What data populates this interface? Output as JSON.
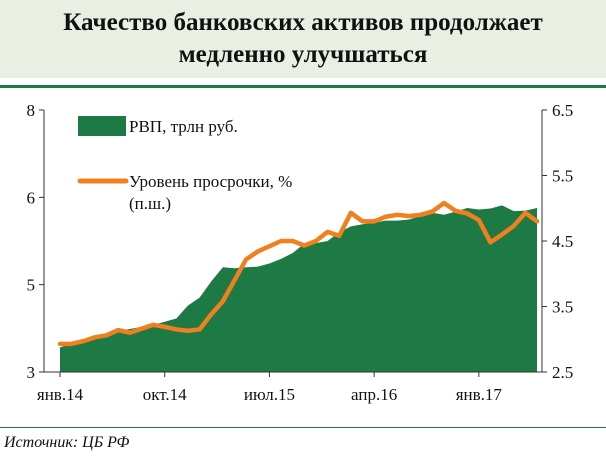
{
  "title": "Качество банковских активов продолжает медленно улучшаться",
  "source": "Источник: ЦБ РФ",
  "colors": {
    "area": "#1e7a44",
    "line": "#f07f1e",
    "header_bg": "#e9f0e3"
  },
  "chart_data": {
    "type": "area",
    "x": [
      "2014-01",
      "2014-02",
      "2014-03",
      "2014-04",
      "2014-05",
      "2014-06",
      "2014-07",
      "2014-08",
      "2014-09",
      "2014-10",
      "2014-11",
      "2014-12",
      "2015-01",
      "2015-02",
      "2015-03",
      "2015-04",
      "2015-05",
      "2015-06",
      "2015-07",
      "2015-08",
      "2015-09",
      "2015-10",
      "2015-11",
      "2015-12",
      "2016-01",
      "2016-02",
      "2016-03",
      "2016-04",
      "2016-05",
      "2016-06",
      "2016-07",
      "2016-08",
      "2016-09",
      "2016-10",
      "2016-11",
      "2016-12",
      "2017-01",
      "2017-02",
      "2017-03",
      "2017-04",
      "2017-05",
      "2017-06"
    ],
    "x_tick_labels": [
      "янв.14",
      "окт.14",
      "июл.15",
      "апр.16",
      "янв.17"
    ],
    "x_tick_index": [
      0,
      9,
      18,
      27,
      36
    ],
    "y_left": {
      "ticks": [
        "8",
        "6",
        "5",
        "3"
      ],
      "range": [
        3,
        8
      ]
    },
    "y_right": {
      "ticks": [
        "6.5",
        "5.5",
        "4.5",
        "3.5",
        "2.5"
      ],
      "range": [
        2.5,
        6.5
      ]
    },
    "series": [
      {
        "name": "РВП, трлн руб.",
        "axis": "left",
        "values": [
          3.47,
          3.54,
          3.62,
          3.63,
          3.7,
          3.78,
          3.82,
          3.86,
          3.9,
          3.96,
          4.02,
          4.27,
          4.42,
          4.73,
          5.0,
          4.98,
          5.0,
          5.01,
          5.07,
          5.16,
          5.27,
          5.45,
          5.46,
          5.5,
          5.67,
          5.78,
          5.82,
          5.85,
          5.89,
          5.89,
          5.91,
          5.98,
          6.04,
          6.0,
          6.06,
          6.13,
          6.1,
          6.12,
          6.18,
          6.07,
          6.08,
          6.13
        ]
      },
      {
        "name": "Уровень просрочки, % (п.ш.)",
        "axis": "right",
        "values": [
          2.93,
          2.93,
          2.97,
          3.03,
          3.06,
          3.14,
          3.1,
          3.16,
          3.22,
          3.19,
          3.15,
          3.13,
          3.15,
          3.38,
          3.58,
          3.9,
          4.22,
          4.34,
          4.42,
          4.5,
          4.5,
          4.43,
          4.5,
          4.64,
          4.58,
          4.93,
          4.8,
          4.8,
          4.87,
          4.9,
          4.88,
          4.9,
          4.95,
          5.08,
          4.96,
          4.92,
          4.82,
          4.48,
          4.6,
          4.73,
          4.93,
          4.8
        ]
      }
    ],
    "legend_placement": "top-left",
    "grid": false
  }
}
